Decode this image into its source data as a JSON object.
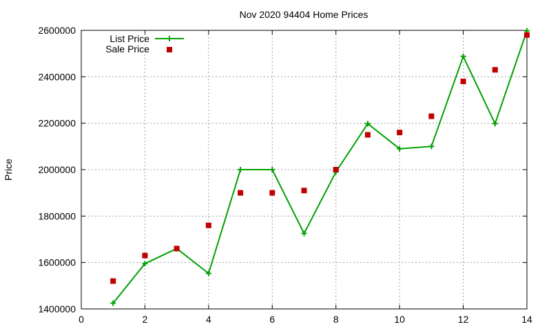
{
  "chart_data": {
    "type": "line",
    "title": "Nov 2020 94404 Home Prices",
    "xlabel": "",
    "ylabel": "Price",
    "xlim": [
      0,
      14
    ],
    "ylim": [
      1400000,
      2600000
    ],
    "xticks": [
      0,
      2,
      4,
      6,
      8,
      10,
      12,
      14
    ],
    "yticks": [
      1400000,
      1600000,
      1800000,
      2000000,
      2200000,
      2400000,
      2600000
    ],
    "xtick_labels": [
      "0",
      "2",
      "4",
      "6",
      "8",
      "10",
      "12",
      "14"
    ],
    "ytick_labels": [
      "1400000",
      "1600000",
      "1800000",
      "2000000",
      "2200000",
      "2400000",
      "2600000"
    ],
    "grid": true,
    "legend_position": "top-left",
    "series": [
      {
        "name": "List Price",
        "style": "linespoints",
        "marker": "plus",
        "color": "#00a000",
        "x": [
          1,
          2,
          3,
          4,
          5,
          6,
          7,
          8,
          9,
          10,
          11,
          12,
          13,
          14
        ],
        "values": [
          1425000,
          1595000,
          1660000,
          1553000,
          2000000,
          2000000,
          1725000,
          1990000,
          2198000,
          2090000,
          2100000,
          2488000,
          2198000,
          2598000
        ]
      },
      {
        "name": "Sale Price",
        "style": "points",
        "marker": "square",
        "color": "#c00000",
        "x": [
          1,
          2,
          3,
          4,
          5,
          6,
          7,
          8,
          9,
          10,
          11,
          12,
          13,
          14
        ],
        "values": [
          1520000,
          1630000,
          1660000,
          1760000,
          1900000,
          1900000,
          1910000,
          2000000,
          2150000,
          2160000,
          2230000,
          2380000,
          2430000,
          2580000
        ]
      }
    ]
  }
}
